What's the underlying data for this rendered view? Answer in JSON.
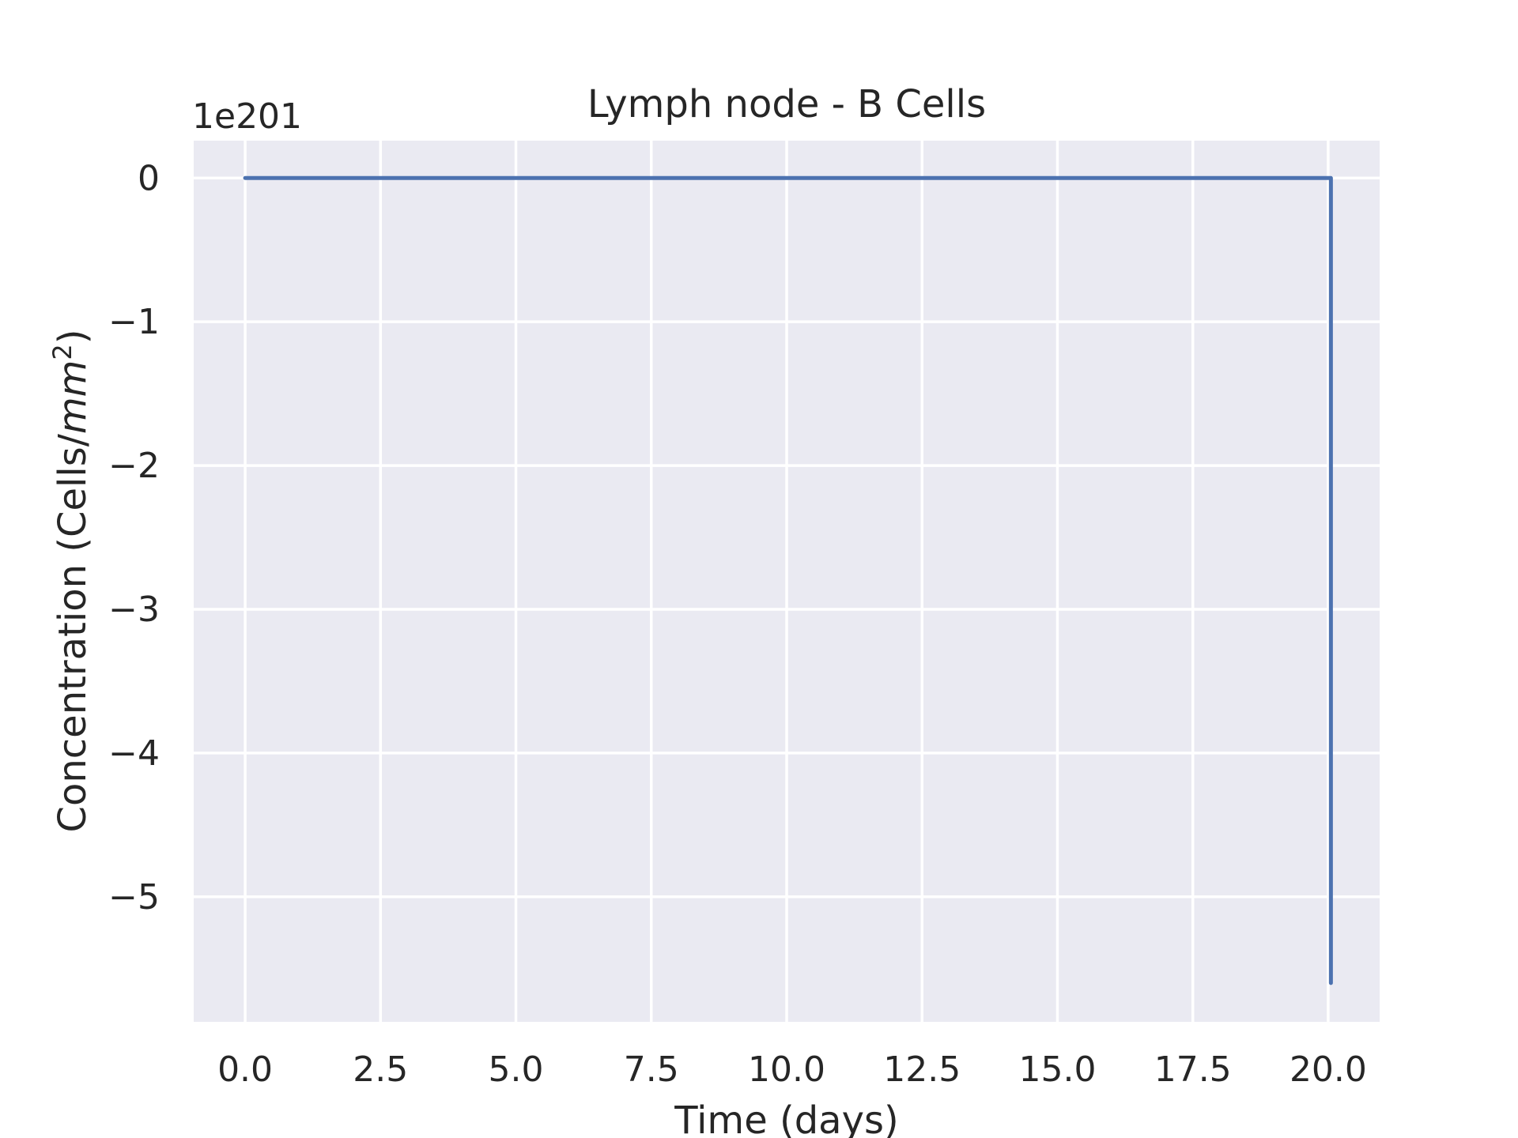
{
  "chart_data": {
    "type": "line",
    "title": "Lymph node - B Cells",
    "xlabel": "Time (days)",
    "ylabel_prefix": "Concentration (Cells/",
    "ylabel_unit": "mm",
    "ylabel_exp": "2",
    "ylabel_suffix": ")",
    "y_offset_label": "1e201",
    "xlim": [
      -0.95,
      20.95
    ],
    "ylim": [
      -5.87,
      0.26
    ],
    "x_ticks": [
      0,
      2.5,
      5,
      7.5,
      10,
      12.5,
      15,
      17.5,
      20
    ],
    "x_tick_labels": [
      "0.0",
      "2.5",
      "5.0",
      "7.5",
      "10.0",
      "12.5",
      "15.0",
      "17.5",
      "20.0"
    ],
    "y_ticks": [
      0,
      -1,
      -2,
      -3,
      -4,
      -5
    ],
    "y_tick_labels": [
      "0",
      "−1",
      "−2",
      "−3",
      "−4",
      "−5"
    ],
    "grid": true,
    "colors": {
      "background": "#EAEAF2",
      "grid": "#FFFFFF",
      "line": "#4C72B0",
      "text": "#262626"
    },
    "series": [
      {
        "x": [
          0,
          5,
          10,
          15,
          20,
          20.05,
          20.05
        ],
        "y": [
          0,
          0,
          0,
          0,
          0,
          0,
          -5.6
        ]
      }
    ]
  }
}
